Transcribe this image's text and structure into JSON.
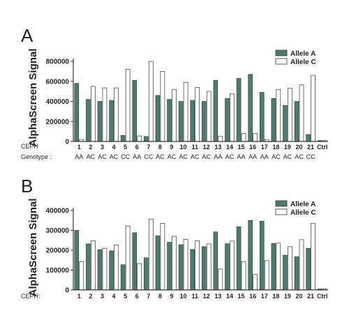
{
  "colors": {
    "allele_a": "#4f7a70",
    "allele_c": "#ffffff",
    "stroke": "#333333",
    "axis": "#333333"
  },
  "chart_data": [
    {
      "type": "bar",
      "panel_label": "A",
      "ylabel": "AlphaScreen Signal",
      "row_label": "CEPH",
      "categories": [
        "1",
        "2",
        "3",
        "4",
        "5",
        "6",
        "7",
        "8",
        "9",
        "10",
        "11",
        "12",
        "13",
        "14",
        "15",
        "16",
        "17",
        "18",
        "19",
        "20",
        "21",
        "Ctrl"
      ],
      "genotype_label": "Genotype :",
      "genotypes": [
        "AA",
        "AC",
        "AC",
        "AC",
        "CC",
        "AA",
        "CC",
        "AC",
        "AC",
        "AC",
        "AC",
        "AC",
        "AA",
        "AC",
        "AA",
        "AA",
        "AA",
        "AC",
        "AC",
        "AC",
        "CC",
        ""
      ],
      "ylim": [
        0,
        800000
      ],
      "yticks": [
        "0",
        "200000",
        "400000",
        "600000",
        "800000"
      ],
      "legend_position": "top-right",
      "grid": false,
      "series": [
        {
          "name": "Allele A",
          "values": [
            580000,
            420000,
            400000,
            410000,
            60000,
            610000,
            50000,
            460000,
            420000,
            400000,
            410000,
            400000,
            610000,
            430000,
            630000,
            670000,
            490000,
            430000,
            360000,
            400000,
            70000,
            10000
          ]
        },
        {
          "name": "Allele C",
          "values": [
            20000,
            550000,
            535000,
            535000,
            720000,
            55000,
            800000,
            700000,
            520000,
            590000,
            540000,
            500000,
            50000,
            475000,
            80000,
            80000,
            20000,
            520000,
            530000,
            565000,
            660000,
            10000
          ]
        }
      ]
    },
    {
      "type": "bar",
      "panel_label": "B",
      "ylabel": "AlphaScreen Signal",
      "row_label": "CEPH:",
      "categories": [
        "1",
        "2",
        "3",
        "4",
        "5",
        "6",
        "7",
        "8",
        "9",
        "10",
        "11",
        "12",
        "13",
        "14",
        "15",
        "16",
        "17",
        "18",
        "19",
        "20",
        "21",
        "Ctrl"
      ],
      "ylim": [
        0,
        400000
      ],
      "yticks": [
        "0",
        "100000",
        "200000",
        "300000",
        "400000"
      ],
      "legend_position": "top-right",
      "grid": false,
      "series": [
        {
          "name": "Allele A",
          "values": [
            300000,
            232000,
            203000,
            197000,
            127000,
            288000,
            162000,
            272000,
            240000,
            228000,
            204000,
            218000,
            292000,
            233000,
            318000,
            350000,
            346000,
            234000,
            175000,
            167000,
            210000,
            5000
          ]
        },
        {
          "name": "Allele C",
          "values": [
            142000,
            248000,
            210000,
            227000,
            322000,
            133000,
            357000,
            335000,
            270000,
            255000,
            248000,
            232000,
            105000,
            246000,
            143000,
            78000,
            148000,
            236000,
            218000,
            253000,
            335000,
            5000
          ]
        }
      ]
    }
  ]
}
